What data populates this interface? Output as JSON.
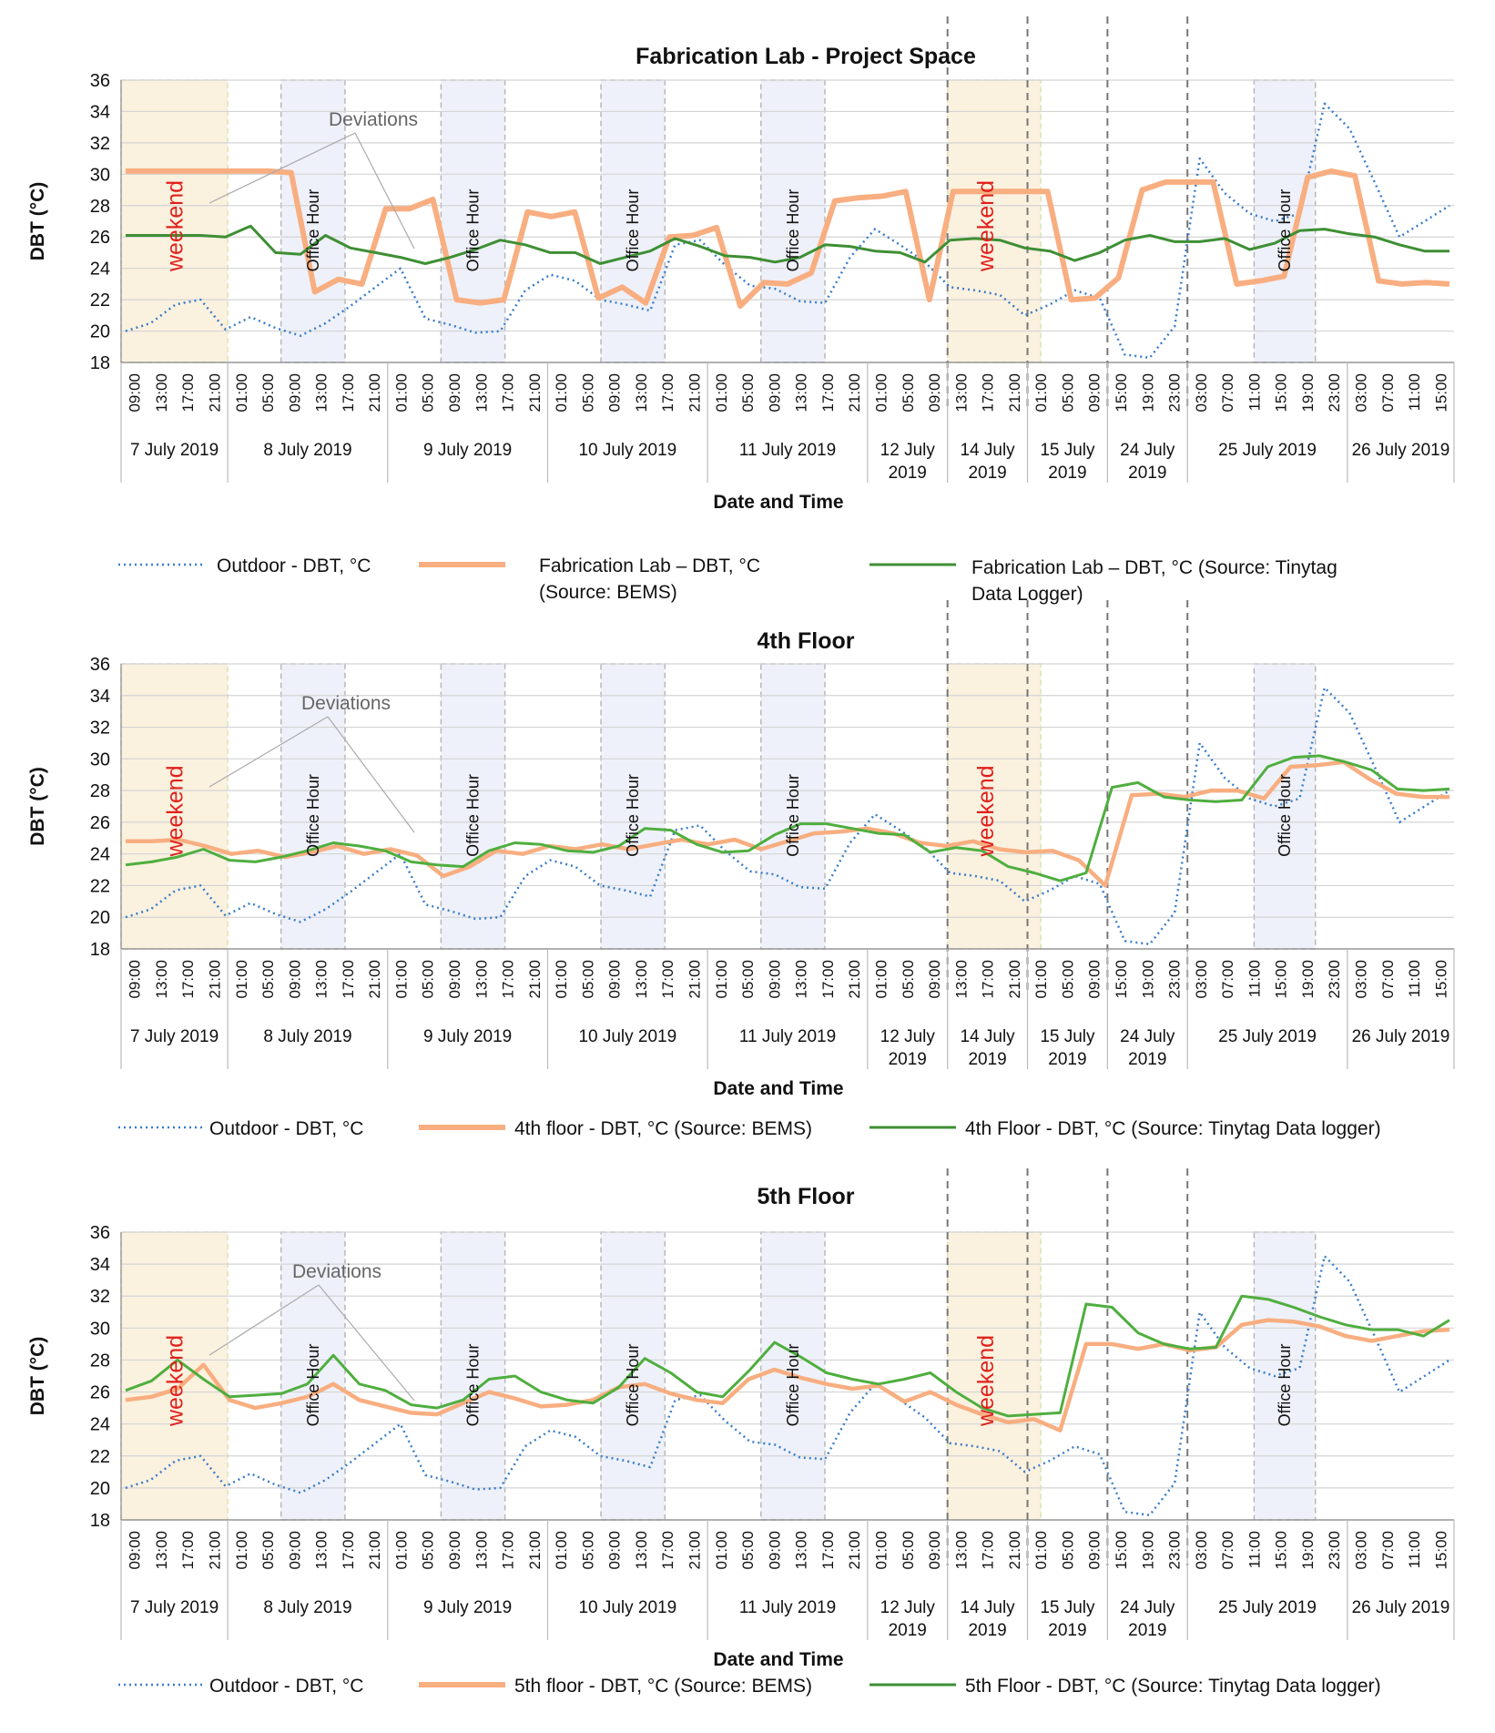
{
  "chart_data": [
    {
      "type": "line",
      "title": "Fabrication Lab - Project Space",
      "xlabel": "Date and Time",
      "ylabel": "DBT (°C)",
      "ylim": [
        18,
        36
      ],
      "yticks": [
        "18",
        "20",
        "22",
        "24",
        "26",
        "28",
        "30",
        "32",
        "34",
        "36"
      ],
      "time_labels": [
        "09:00",
        "13:00",
        "17:00",
        "21:00",
        "01:00",
        "05:00",
        "09:00",
        "13:00",
        "17:00",
        "21:00",
        "01:00",
        "05:00",
        "09:00",
        "13:00",
        "17:00",
        "21:00",
        "01:00",
        "05:00",
        "09:00",
        "13:00",
        "17:00",
        "21:00",
        "01:00",
        "05:00",
        "09:00",
        "13:00",
        "17:00",
        "21:00",
        "01:00",
        "05:00",
        "09:00",
        "13:00",
        "17:00",
        "21:00",
        "01:00",
        "05:00",
        "09:00",
        "15:00",
        "19:00",
        "23:00",
        "03:00",
        "07:00",
        "11:00",
        "15:00",
        "19:00",
        "23:00",
        "03:00",
        "07:00",
        "11:00",
        "15:00"
      ],
      "date_groups": [
        {
          "label": [
            "7 July 2019"
          ]
        },
        {
          "label": [
            "8 July 2019"
          ]
        },
        {
          "label": [
            "9 July 2019"
          ]
        },
        {
          "label": [
            "10 July 2019"
          ]
        },
        {
          "label": [
            "11 July 2019"
          ]
        },
        {
          "label": [
            "12 July",
            "2019"
          ]
        },
        {
          "label": [
            "14 July",
            "2019"
          ]
        },
        {
          "label": [
            "15 July",
            "2019"
          ]
        },
        {
          "label": [
            "24 July",
            "2019"
          ]
        },
        {
          "label": [
            "25 July 2019"
          ]
        },
        {
          "label": [
            "26 July 2019"
          ]
        }
      ],
      "series": [
        {
          "name": "Outdoor - DBT, °C",
          "color": "#3a7dc9",
          "values": [
            20.0,
            20.5,
            21.7,
            22.0,
            20.1,
            20.9,
            20.2,
            19.7,
            20.5,
            21.6,
            22.8,
            24.0,
            20.8,
            20.4,
            19.9,
            20.0,
            22.6,
            23.6,
            23.2,
            22.0,
            21.7,
            21.3,
            25.5,
            25.8,
            24.2,
            22.9,
            22.7,
            21.9,
            21.8,
            24.7,
            26.5,
            25.5,
            24.4,
            22.8,
            22.6,
            22.3,
            21.0,
            21.7,
            22.6,
            22.1,
            18.5,
            18.3,
            20.3,
            31.0,
            28.8,
            27.5,
            27.0,
            27.5,
            34.5,
            32.9,
            29.5,
            26.0,
            27.0,
            28.0
          ]
        },
        {
          "name": "Fabrication Lab – DBT, °C (Source: BEMS)",
          "color": "#f8ae80",
          "values": [
            30.2,
            30.2,
            30.2,
            30.2,
            30.2,
            30.2,
            30.2,
            30.1,
            22.5,
            23.3,
            23.0,
            27.8,
            27.8,
            28.4,
            22.0,
            21.8,
            22.0,
            27.6,
            27.3,
            27.6,
            22.1,
            22.8,
            21.8,
            26.0,
            26.1,
            26.6,
            21.6,
            23.1,
            23.0,
            23.7,
            28.3,
            28.5,
            28.6,
            28.9,
            22.0,
            28.9,
            28.9,
            28.9,
            28.9,
            28.9,
            22.0,
            22.1,
            23.4,
            29.0,
            29.5,
            29.5,
            29.5,
            23.0,
            23.2,
            23.5,
            29.8,
            30.2,
            29.9,
            23.2,
            23.0,
            23.1,
            23.0
          ]
        },
        {
          "name": "Fabrication Lab – DBT, °C (Source: Tinytag Data Logger)",
          "color": "#3e8f34",
          "values": [
            26.1,
            26.1,
            26.1,
            26.1,
            26.0,
            26.7,
            25.0,
            24.9,
            26.1,
            25.3,
            25.0,
            24.7,
            24.3,
            24.7,
            25.2,
            25.8,
            25.5,
            25.0,
            25.0,
            24.3,
            24.7,
            25.1,
            25.9,
            25.4,
            24.8,
            24.7,
            24.4,
            24.7,
            25.5,
            25.4,
            25.1,
            25.0,
            24.4,
            25.8,
            25.9,
            25.8,
            25.3,
            25.1,
            24.5,
            25.0,
            25.8,
            26.1,
            25.7,
            25.7,
            25.9,
            25.2,
            25.6,
            26.4,
            26.5,
            26.2,
            26.0,
            25.5,
            25.1,
            25.1
          ]
        }
      ],
      "legend": [
        "Outdoor - DBT, °C",
        "Fabrication Lab – DBT, °C",
        "(Source: BEMS)",
        "Fabrication Lab – DBT, °C (Source: Tinytag",
        "Data Logger)"
      ],
      "annotations": {
        "weekend": "weekend",
        "office": "Office Hour",
        "deviations": "Deviations"
      }
    },
    {
      "type": "line",
      "title": "4th Floor",
      "xlabel": "Date and Time",
      "ylabel": "DBT (°C)",
      "ylim": [
        18,
        36
      ],
      "yticks": [
        "18",
        "20",
        "22",
        "24",
        "26",
        "28",
        "30",
        "32",
        "34",
        "36"
      ],
      "time_labels": [
        "09:00",
        "13:00",
        "17:00",
        "21:00",
        "01:00",
        "05:00",
        "09:00",
        "13:00",
        "17:00",
        "21:00",
        "01:00",
        "05:00",
        "09:00",
        "13:00",
        "17:00",
        "21:00",
        "01:00",
        "05:00",
        "09:00",
        "13:00",
        "17:00",
        "21:00",
        "01:00",
        "05:00",
        "09:00",
        "13:00",
        "17:00",
        "21:00",
        "01:00",
        "05:00",
        "09:00",
        "13:00",
        "17:00",
        "21:00",
        "01:00",
        "05:00",
        "09:00",
        "15:00",
        "19:00",
        "23:00",
        "03:00",
        "07:00",
        "11:00",
        "15:00",
        "19:00",
        "23:00",
        "03:00",
        "07:00",
        "11:00",
        "15:00"
      ],
      "date_groups": [
        {
          "label": [
            "7 July 2019"
          ]
        },
        {
          "label": [
            "8 July 2019"
          ]
        },
        {
          "label": [
            "9 July 2019"
          ]
        },
        {
          "label": [
            "10 July 2019"
          ]
        },
        {
          "label": [
            "11 July 2019"
          ]
        },
        {
          "label": [
            "12 July",
            "2019"
          ]
        },
        {
          "label": [
            "14 July",
            "2019"
          ]
        },
        {
          "label": [
            "15 July",
            "2019"
          ]
        },
        {
          "label": [
            "24 July",
            "2019"
          ]
        },
        {
          "label": [
            "25 July 2019"
          ]
        },
        {
          "label": [
            "26 July 2019"
          ]
        }
      ],
      "series": [
        {
          "name": "Outdoor - DBT, °C",
          "color": "#3a7dc9",
          "values": [
            20.0,
            20.5,
            21.7,
            22.0,
            20.1,
            20.9,
            20.2,
            19.7,
            20.5,
            21.6,
            22.8,
            24.0,
            20.8,
            20.4,
            19.9,
            20.0,
            22.6,
            23.6,
            23.2,
            22.0,
            21.7,
            21.3,
            25.5,
            25.8,
            24.2,
            22.9,
            22.7,
            21.9,
            21.8,
            24.7,
            26.5,
            25.5,
            24.4,
            22.8,
            22.6,
            22.3,
            21.0,
            21.7,
            22.6,
            22.1,
            18.5,
            18.3,
            20.3,
            31.0,
            28.8,
            27.5,
            27.0,
            27.5,
            34.5,
            32.9,
            29.5,
            26.0,
            27.0,
            28.0
          ]
        },
        {
          "name": "4th floor - DBT, °C (Source: BEMS)",
          "color": "#f8ae80",
          "values": [
            24.8,
            24.8,
            24.9,
            24.5,
            24.0,
            24.2,
            23.8,
            24.1,
            24.5,
            24.0,
            24.3,
            23.9,
            22.6,
            23.2,
            24.2,
            24.0,
            24.5,
            24.3,
            24.6,
            24.3,
            24.6,
            24.9,
            24.6,
            24.9,
            24.3,
            24.8,
            25.3,
            25.4,
            25.6,
            25.3,
            24.7,
            24.5,
            24.8,
            24.3,
            24.1,
            24.2,
            23.6,
            22.0,
            27.7,
            27.8,
            27.6,
            28.0,
            28.0,
            27.5,
            29.5,
            29.6,
            29.8,
            28.7,
            27.8,
            27.6,
            27.6
          ]
        },
        {
          "name": "4th Floor - DBT, °C (Source: Tinytag Data logger)",
          "color": "#4fae3f",
          "values": [
            23.3,
            23.5,
            23.8,
            24.3,
            23.6,
            23.5,
            23.8,
            24.2,
            24.7,
            24.5,
            24.2,
            23.5,
            23.3,
            23.2,
            24.2,
            24.7,
            24.6,
            24.2,
            24.1,
            24.5,
            25.6,
            25.5,
            24.6,
            24.1,
            24.2,
            25.2,
            25.9,
            25.9,
            25.6,
            25.3,
            25.2,
            24.1,
            24.4,
            24.2,
            23.2,
            22.8,
            22.3,
            22.8,
            28.2,
            28.5,
            27.6,
            27.4,
            27.3,
            27.4,
            29.5,
            30.1,
            30.2,
            29.8,
            29.3,
            28.1,
            28.0,
            28.1
          ]
        }
      ],
      "legend": [
        "Outdoor - DBT, °C",
        "4th floor - DBT, °C (Source: BEMS)",
        "4th Floor - DBT, °C (Source: Tinytag Data logger)"
      ],
      "annotations": {
        "weekend": "weekend",
        "office": "Office Hour",
        "deviations": "Deviations"
      }
    },
    {
      "type": "line",
      "title": "5th Floor",
      "xlabel": "Date and Time",
      "ylabel": "DBT (°C)",
      "ylim": [
        18,
        36
      ],
      "yticks": [
        "18",
        "20",
        "22",
        "24",
        "26",
        "28",
        "30",
        "32",
        "34",
        "36"
      ],
      "time_labels": [
        "09:00",
        "13:00",
        "17:00",
        "21:00",
        "01:00",
        "05:00",
        "09:00",
        "13:00",
        "17:00",
        "21:00",
        "01:00",
        "05:00",
        "09:00",
        "13:00",
        "17:00",
        "21:00",
        "01:00",
        "05:00",
        "09:00",
        "13:00",
        "17:00",
        "21:00",
        "01:00",
        "05:00",
        "09:00",
        "13:00",
        "17:00",
        "21:00",
        "01:00",
        "05:00",
        "09:00",
        "13:00",
        "17:00",
        "21:00",
        "01:00",
        "05:00",
        "09:00",
        "15:00",
        "19:00",
        "23:00",
        "03:00",
        "07:00",
        "11:00",
        "15:00",
        "19:00",
        "23:00",
        "03:00",
        "07:00",
        "11:00",
        "15:00"
      ],
      "date_groups": [
        {
          "label": [
            "7 July 2019"
          ]
        },
        {
          "label": [
            "8 July 2019"
          ]
        },
        {
          "label": [
            "9 July 2019"
          ]
        },
        {
          "label": [
            "10 July 2019"
          ]
        },
        {
          "label": [
            "11 July 2019"
          ]
        },
        {
          "label": [
            "12 July",
            "2019"
          ]
        },
        {
          "label": [
            "14 July",
            "2019"
          ]
        },
        {
          "label": [
            "15 July",
            "2019"
          ]
        },
        {
          "label": [
            "24 July",
            "2019"
          ]
        },
        {
          "label": [
            "25 July 2019"
          ]
        },
        {
          "label": [
            "26 July 2019"
          ]
        }
      ],
      "series": [
        {
          "name": "Outdoor - DBT, °C",
          "color": "#3a7dc9",
          "values": [
            20.0,
            20.5,
            21.7,
            22.0,
            20.1,
            20.9,
            20.2,
            19.7,
            20.5,
            21.6,
            22.8,
            24.0,
            20.8,
            20.4,
            19.9,
            20.0,
            22.6,
            23.6,
            23.2,
            22.0,
            21.7,
            21.3,
            25.5,
            25.8,
            24.2,
            22.9,
            22.7,
            21.9,
            21.8,
            24.7,
            26.5,
            25.5,
            24.4,
            22.8,
            22.6,
            22.3,
            21.0,
            21.7,
            22.6,
            22.1,
            18.5,
            18.3,
            20.3,
            31.0,
            28.8,
            27.5,
            27.0,
            27.5,
            34.5,
            32.9,
            29.5,
            26.0,
            27.0,
            28.0
          ]
        },
        {
          "name": "5th floor - DBT, °C (Source: BEMS)",
          "color": "#f8ae80",
          "values": [
            25.5,
            25.7,
            26.2,
            27.7,
            25.5,
            25.0,
            25.3,
            25.7,
            26.5,
            25.5,
            25.1,
            24.7,
            24.6,
            25.3,
            26.0,
            25.6,
            25.1,
            25.2,
            25.5,
            26.3,
            26.5,
            25.9,
            25.5,
            25.3,
            26.8,
            27.4,
            26.9,
            26.5,
            26.2,
            26.4,
            25.4,
            26.0,
            25.2,
            24.6,
            24.1,
            24.3,
            23.6,
            29.0,
            29.0,
            28.7,
            29.0,
            28.6,
            28.8,
            30.2,
            30.5,
            30.4,
            30.1,
            29.5,
            29.2,
            29.5,
            29.8,
            29.9
          ]
        },
        {
          "name": "5th Floor - DBT, °C (Source: Tinytag Data logger)",
          "color": "#4fae3f",
          "values": [
            26.1,
            26.7,
            28.0,
            26.8,
            25.7,
            25.8,
            25.9,
            26.5,
            28.3,
            26.5,
            26.1,
            25.2,
            25.0,
            25.5,
            26.8,
            27.0,
            26.0,
            25.5,
            25.3,
            26.3,
            28.1,
            27.2,
            26.0,
            25.7,
            27.3,
            29.1,
            28.2,
            27.2,
            26.8,
            26.5,
            26.8,
            27.2,
            26.0,
            25.0,
            24.5,
            24.6,
            24.7,
            31.5,
            31.3,
            29.7,
            29.0,
            28.7,
            28.8,
            32.0,
            31.8,
            31.3,
            30.7,
            30.2,
            29.9,
            29.9,
            29.5,
            30.5
          ]
        }
      ],
      "legend": [
        "Outdoor - DBT, °C",
        "5th floor - DBT, °C (Source: BEMS)",
        "5th Floor - DBT, °C (Source: Tinytag Data logger)"
      ],
      "annotations": {
        "weekend": "weekend",
        "office": "Office Hour",
        "deviations": "Deviations"
      }
    }
  ]
}
